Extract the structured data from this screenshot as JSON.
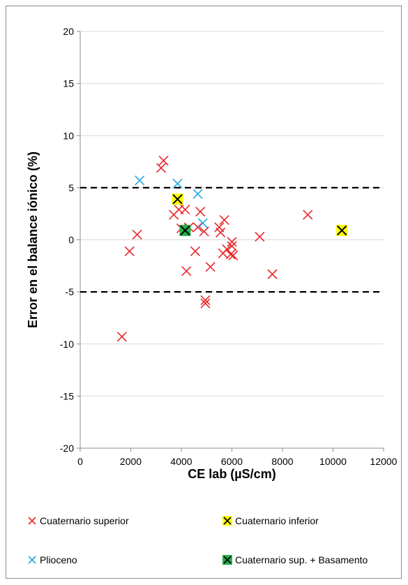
{
  "chart_data": {
    "type": "scatter",
    "xlabel": "CE lab (µS/cm)",
    "ylabel": "Error en el balance iónico (%)",
    "xlim": [
      0,
      12000
    ],
    "ylim": [
      -20,
      20
    ],
    "x_ticks": [
      "0",
      "2000",
      "4000",
      "6000",
      "8000",
      "10000",
      "12000"
    ],
    "y_ticks": [
      "20",
      "15",
      "10",
      "5",
      "0",
      "-5",
      "-10",
      "-15",
      "-20"
    ],
    "gridlines": "horizontal",
    "reference_lines": [
      5,
      -5
    ],
    "series": [
      {
        "name": "Cuaternario superior",
        "color": "#e8262b",
        "marker": "x",
        "points": [
          [
            3300,
            7.6
          ],
          [
            3200,
            6.9
          ],
          [
            9000,
            2.4
          ],
          [
            7100,
            0.3
          ],
          [
            7600,
            -3.3
          ],
          [
            1650,
            -9.3
          ],
          [
            1950,
            -1.1
          ],
          [
            2250,
            0.5
          ],
          [
            3900,
            2.9
          ],
          [
            4150,
            2.9
          ],
          [
            4000,
            1.1
          ],
          [
            4300,
            1.2
          ],
          [
            4750,
            2.7
          ],
          [
            4650,
            1.2
          ],
          [
            4900,
            0.8
          ],
          [
            4550,
            -1.1
          ],
          [
            4200,
            -3.0
          ],
          [
            4950,
            -5.8
          ],
          [
            4950,
            -6.1
          ],
          [
            5150,
            -2.6
          ],
          [
            5500,
            1.2
          ],
          [
            5550,
            0.7
          ],
          [
            5700,
            1.9
          ],
          [
            5650,
            -1.3
          ],
          [
            5800,
            -0.9
          ],
          [
            5950,
            -1.4
          ],
          [
            6000,
            -0.2
          ],
          [
            6000,
            -0.6
          ],
          [
            6050,
            -1.5
          ],
          [
            3700,
            2.4
          ]
        ]
      },
      {
        "name": "Cuaternario inferior",
        "color": "#ffff00",
        "marker": "x-box",
        "points": [
          [
            3850,
            3.9
          ],
          [
            10350,
            0.9
          ]
        ]
      },
      {
        "name": "Plioceno",
        "color": "#21a9e1",
        "marker": "x",
        "points": [
          [
            2350,
            5.7
          ],
          [
            3850,
            5.4
          ],
          [
            4650,
            4.4
          ],
          [
            4850,
            1.6
          ]
        ]
      },
      {
        "name": "Cuaternario sup. + Basamento",
        "color": "#21b24b",
        "marker": "x-box",
        "points": [
          [
            4150,
            0.9
          ]
        ]
      }
    ],
    "legend": {
      "placement": "bottom",
      "columns": 2
    }
  }
}
